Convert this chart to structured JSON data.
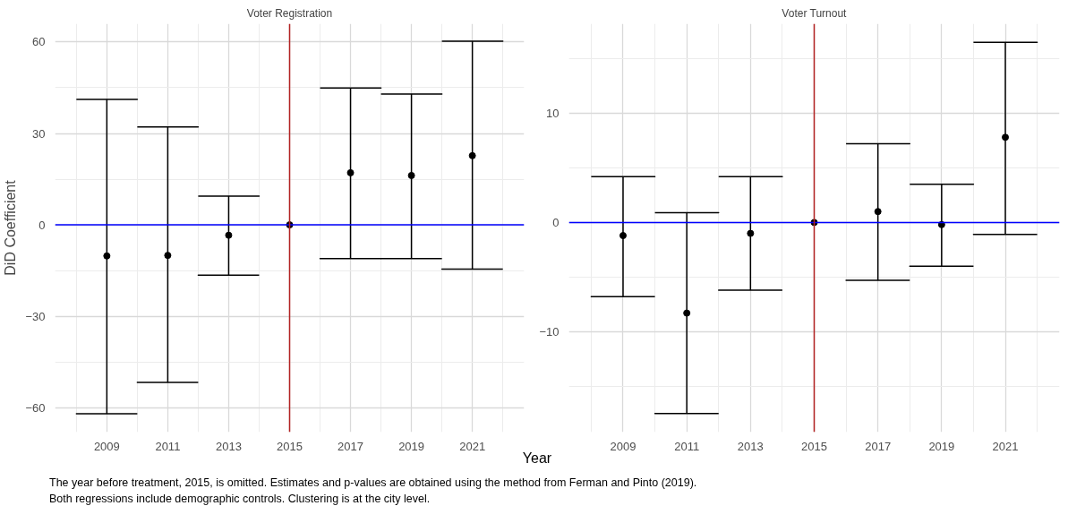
{
  "chart_data": [
    {
      "type": "scatter",
      "title": "Voter Registration",
      "ylabel": "DiD Coefficient",
      "xlabel": "Year",
      "x": [
        2009,
        2011,
        2013,
        2015,
        2017,
        2019,
        2021
      ],
      "series": [
        {
          "color": "#000000",
          "values": [
            -10.2,
            -10,
            -3.4,
            0,
            17.1,
            16.2,
            22.7
          ],
          "errors": [
            [
              -62,
              41.2
            ],
            [
              -51.7,
              32.1
            ],
            [
              -16.5,
              9.4
            ],
            null,
            [
              -11.1,
              44.9
            ],
            [
              -11.1,
              42.9
            ],
            [
              -14.5,
              60.3
            ]
          ]
        }
      ],
      "xlim": [
        2007.3,
        2022.7
      ],
      "xticks": [
        2009,
        2011,
        2013,
        2015,
        2017,
        2019,
        2021
      ],
      "ylim": [
        -68,
        66
      ],
      "yticks": [
        -60,
        -30,
        0,
        30,
        60
      ],
      "grid": true,
      "marker": "circle",
      "ref_lines": [
        {
          "axis": "y",
          "value": 0,
          "color": "#0000ff"
        },
        {
          "axis": "x",
          "value": 2015,
          "color": "#b22222"
        }
      ],
      "annotations": [
        "The year before treatment, 2015, is omitted. Estimates and p-values are obtained using the method from Ferman and Pinto (2019).",
        "Both regressions include demographic controls. Clustering is at the city level."
      ]
    },
    {
      "type": "scatter",
      "title": "Voter Turnout",
      "x": [
        2009,
        2011,
        2013,
        2015,
        2017,
        2019,
        2021
      ],
      "series": [
        {
          "color": "#000000",
          "values": [
            -1.2,
            -8.3,
            -1.0,
            0,
            1.0,
            -0.2,
            7.8
          ],
          "errors": [
            [
              -6.8,
              4.2
            ],
            [
              -17.5,
              0.9
            ],
            [
              -6.2,
              4.2
            ],
            null,
            [
              -5.3,
              7.2
            ],
            [
              -4.0,
              3.5
            ],
            [
              -1.1,
              16.5
            ]
          ]
        }
      ],
      "xlim": [
        2007.3,
        2022.7
      ],
      "xticks": [
        2009,
        2011,
        2013,
        2015,
        2017,
        2019,
        2021
      ],
      "ylim": [
        -19.2,
        18.2
      ],
      "yticks": [
        -10,
        0,
        10
      ],
      "grid": true,
      "marker": "circle",
      "ref_lines": [
        {
          "axis": "y",
          "value": 0,
          "color": "#0000ff"
        },
        {
          "axis": "x",
          "value": 2015,
          "color": "#b22222"
        }
      ]
    }
  ]
}
